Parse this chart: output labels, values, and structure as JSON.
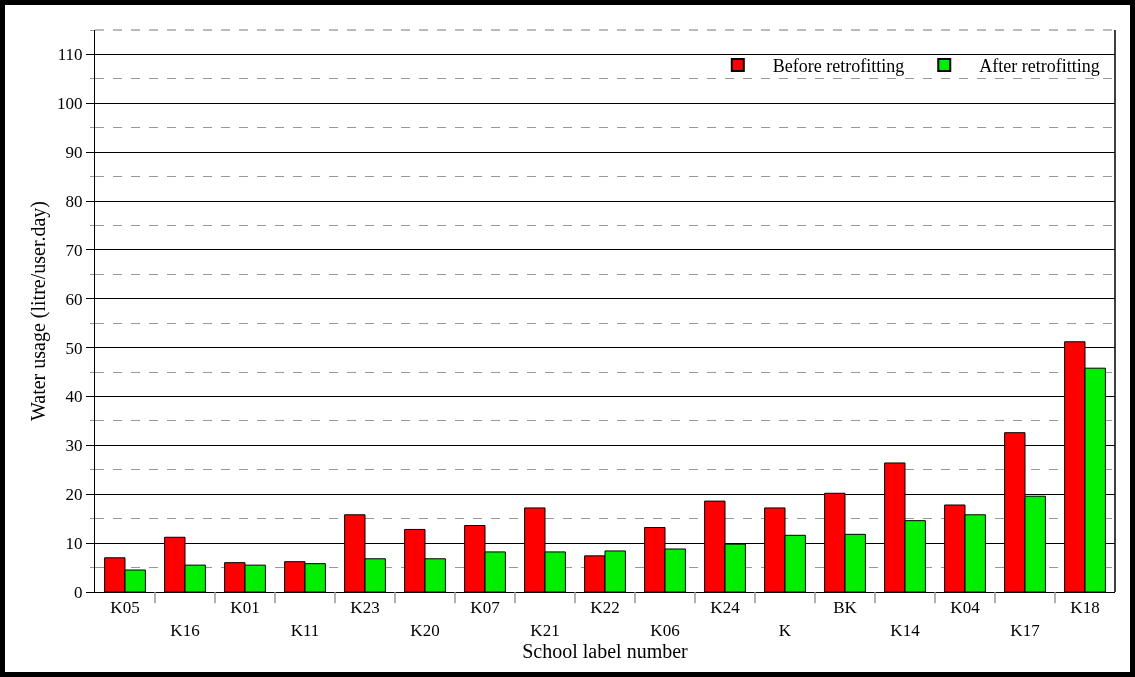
{
  "chart_data": {
    "type": "bar",
    "xlabel": "School label number",
    "ylabel": "Water usage (litre/user.day)",
    "categories": [
      "K05",
      "K16",
      "K01",
      "K11",
      "K23",
      "K20",
      "K07",
      "K21",
      "K22",
      "K06",
      "K24",
      "K",
      "BK",
      "K14",
      "K04",
      "K17",
      "K18"
    ],
    "series": [
      {
        "name": "Before retrofitting",
        "color": "#ff0000",
        "values": [
          7,
          11.2,
          6,
          6.2,
          15.8,
          12.8,
          13.6,
          17.2,
          7.4,
          13.2,
          18.6,
          17.2,
          20.2,
          26.4,
          17.8,
          32.6,
          51.2
        ]
      },
      {
        "name": "After retrofitting",
        "color": "#00ee00",
        "values": [
          4.5,
          5.5,
          5.5,
          5.8,
          6.8,
          6.8,
          8.2,
          8.2,
          8.4,
          8.8,
          9.8,
          11.6,
          11.8,
          14.6,
          15.8,
          19.6,
          45.8
        ]
      }
    ],
    "ylim": [
      0,
      115
    ],
    "yticks": [
      0,
      10,
      20,
      30,
      40,
      50,
      60,
      70,
      80,
      90,
      100,
      110
    ],
    "grid": "y",
    "legend": "top right"
  }
}
